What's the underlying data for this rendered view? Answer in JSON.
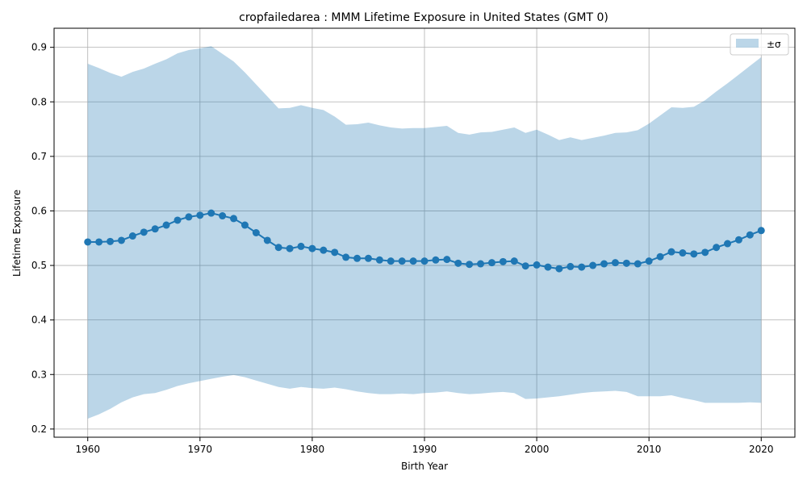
{
  "chart_data": {
    "type": "line",
    "title": "cropfailedarea : MMM Lifetime Exposure in United States (GMT 0)",
    "xlabel": "Birth Year",
    "ylabel": "Lifetime Exposure",
    "xlim": [
      1957,
      2023
    ],
    "ylim": [
      0.185,
      0.935
    ],
    "xticks": [
      1960,
      1970,
      1980,
      1990,
      2000,
      2010,
      2020
    ],
    "yticks": [
      0.2,
      0.3,
      0.4,
      0.5,
      0.6,
      0.7,
      0.8,
      0.9
    ],
    "grid": true,
    "legend_position": "top-right",
    "legend": [
      {
        "label": "±σ",
        "kind": "band"
      }
    ],
    "colors": {
      "line": "#1f77b4",
      "band": "#1f77b4",
      "band_opacity": 0.3,
      "grid": "#b0b0b0"
    },
    "x": [
      1960,
      1961,
      1962,
      1963,
      1964,
      1965,
      1966,
      1967,
      1968,
      1969,
      1970,
      1971,
      1972,
      1973,
      1974,
      1975,
      1976,
      1977,
      1978,
      1979,
      1980,
      1981,
      1982,
      1983,
      1984,
      1985,
      1986,
      1987,
      1988,
      1989,
      1990,
      1991,
      1992,
      1993,
      1994,
      1995,
      1996,
      1997,
      1998,
      1999,
      2000,
      2001,
      2002,
      2003,
      2004,
      2005,
      2006,
      2007,
      2008,
      2009,
      2010,
      2011,
      2012,
      2013,
      2014,
      2015,
      2016,
      2017,
      2018,
      2019,
      2020
    ],
    "series": [
      {
        "values": [
          0.543,
          0.543,
          0.544,
          0.546,
          0.554,
          0.561,
          0.567,
          0.574,
          0.583,
          0.589,
          0.592,
          0.596,
          0.591,
          0.586,
          0.574,
          0.56,
          0.546,
          0.533,
          0.531,
          0.535,
          0.531,
          0.528,
          0.524,
          0.515,
          0.513,
          0.513,
          0.51,
          0.508,
          0.508,
          0.508,
          0.508,
          0.51,
          0.511,
          0.504,
          0.502,
          0.503,
          0.505,
          0.507,
          0.508,
          0.499,
          0.501,
          0.497,
          0.494,
          0.498,
          0.497,
          0.5,
          0.503,
          0.505,
          0.504,
          0.503,
          0.508,
          0.516,
          0.525,
          0.523,
          0.521,
          0.524,
          0.533,
          0.54,
          0.547,
          0.556,
          0.564
        ],
        "upper": [
          0.87,
          0.862,
          0.853,
          0.846,
          0.855,
          0.861,
          0.87,
          0.878,
          0.889,
          0.895,
          0.898,
          0.902,
          0.888,
          0.874,
          0.854,
          0.832,
          0.81,
          0.788,
          0.789,
          0.794,
          0.789,
          0.785,
          0.773,
          0.758,
          0.759,
          0.762,
          0.757,
          0.753,
          0.751,
          0.752,
          0.752,
          0.754,
          0.756,
          0.743,
          0.74,
          0.744,
          0.745,
          0.749,
          0.753,
          0.743,
          0.749,
          0.74,
          0.73,
          0.735,
          0.73,
          0.734,
          0.738,
          0.743,
          0.744,
          0.748,
          0.76,
          0.775,
          0.79,
          0.789,
          0.791,
          0.803,
          0.819,
          0.834,
          0.85,
          0.866,
          0.882
        ],
        "lower": [
          0.219,
          0.227,
          0.237,
          0.249,
          0.258,
          0.264,
          0.266,
          0.272,
          0.279,
          0.284,
          0.288,
          0.292,
          0.296,
          0.299,
          0.295,
          0.289,
          0.283,
          0.277,
          0.274,
          0.277,
          0.275,
          0.274,
          0.276,
          0.273,
          0.269,
          0.266,
          0.264,
          0.264,
          0.265,
          0.264,
          0.266,
          0.267,
          0.269,
          0.266,
          0.264,
          0.265,
          0.267,
          0.268,
          0.266,
          0.255,
          0.256,
          0.258,
          0.26,
          0.263,
          0.266,
          0.268,
          0.269,
          0.27,
          0.268,
          0.26,
          0.26,
          0.26,
          0.262,
          0.257,
          0.253,
          0.248,
          0.248,
          0.248,
          0.248,
          0.249,
          0.248
        ]
      }
    ]
  }
}
